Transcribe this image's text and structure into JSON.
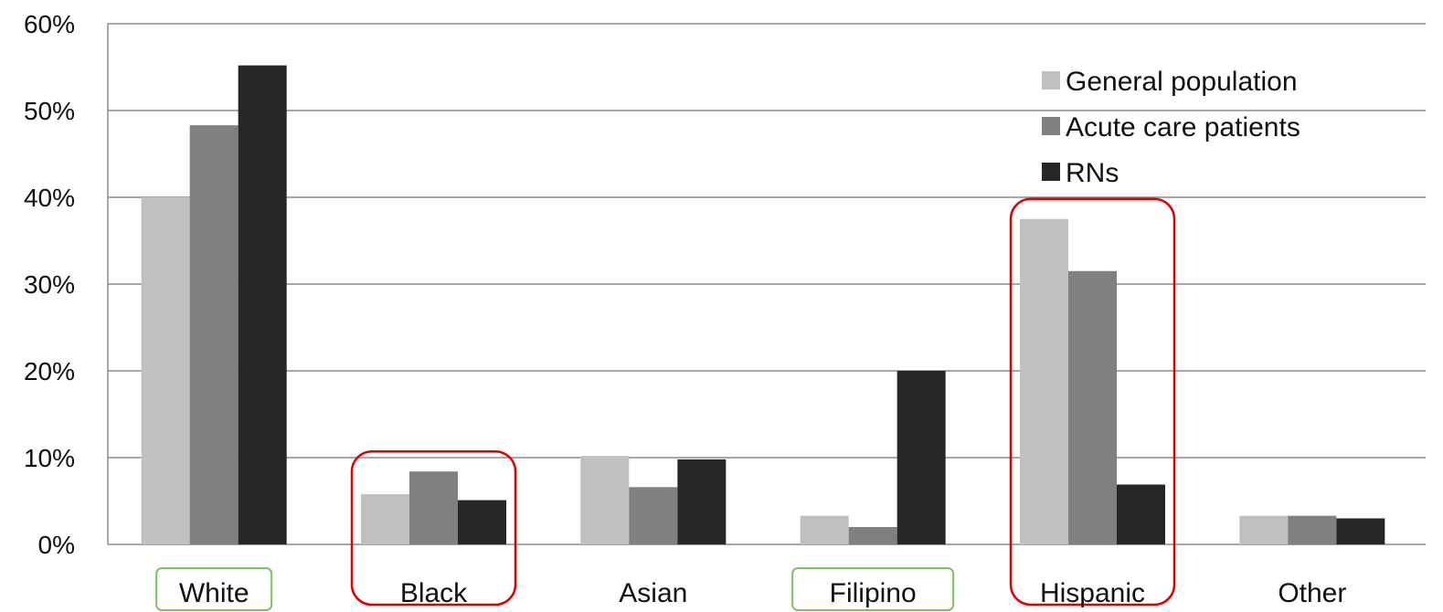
{
  "chart_data": {
    "type": "bar",
    "categories": [
      "White",
      "Black",
      "Asian",
      "Filipino",
      "Hispanic",
      "Other"
    ],
    "series": [
      {
        "name": "General population",
        "values": [
          40,
          5.8,
          10.2,
          3.3,
          37.5,
          3.3
        ],
        "color": "#c0c0c0"
      },
      {
        "name": "Acute care patients",
        "values": [
          48.3,
          8.4,
          6.6,
          2.0,
          31.5,
          3.3
        ],
        "color": "#808080"
      },
      {
        "name": "RNs",
        "values": [
          55.2,
          5.1,
          9.8,
          20.0,
          6.9,
          3.0
        ],
        "color": "#262626"
      }
    ],
    "ylim": [
      0,
      60
    ],
    "yticks": [
      "0%",
      "10%",
      "20%",
      "30%",
      "40%",
      "50%",
      "60%"
    ],
    "grid": true,
    "legend_position": "top-right",
    "highlight_boxes": [
      {
        "category": "White",
        "color": "#7cc35a",
        "style": "label"
      },
      {
        "category": "Black",
        "color": "#e00000",
        "style": "group"
      },
      {
        "category": "Filipino",
        "color": "#7cc35a",
        "style": "label"
      },
      {
        "category": "Hispanic",
        "color": "#e00000",
        "style": "group"
      }
    ]
  }
}
